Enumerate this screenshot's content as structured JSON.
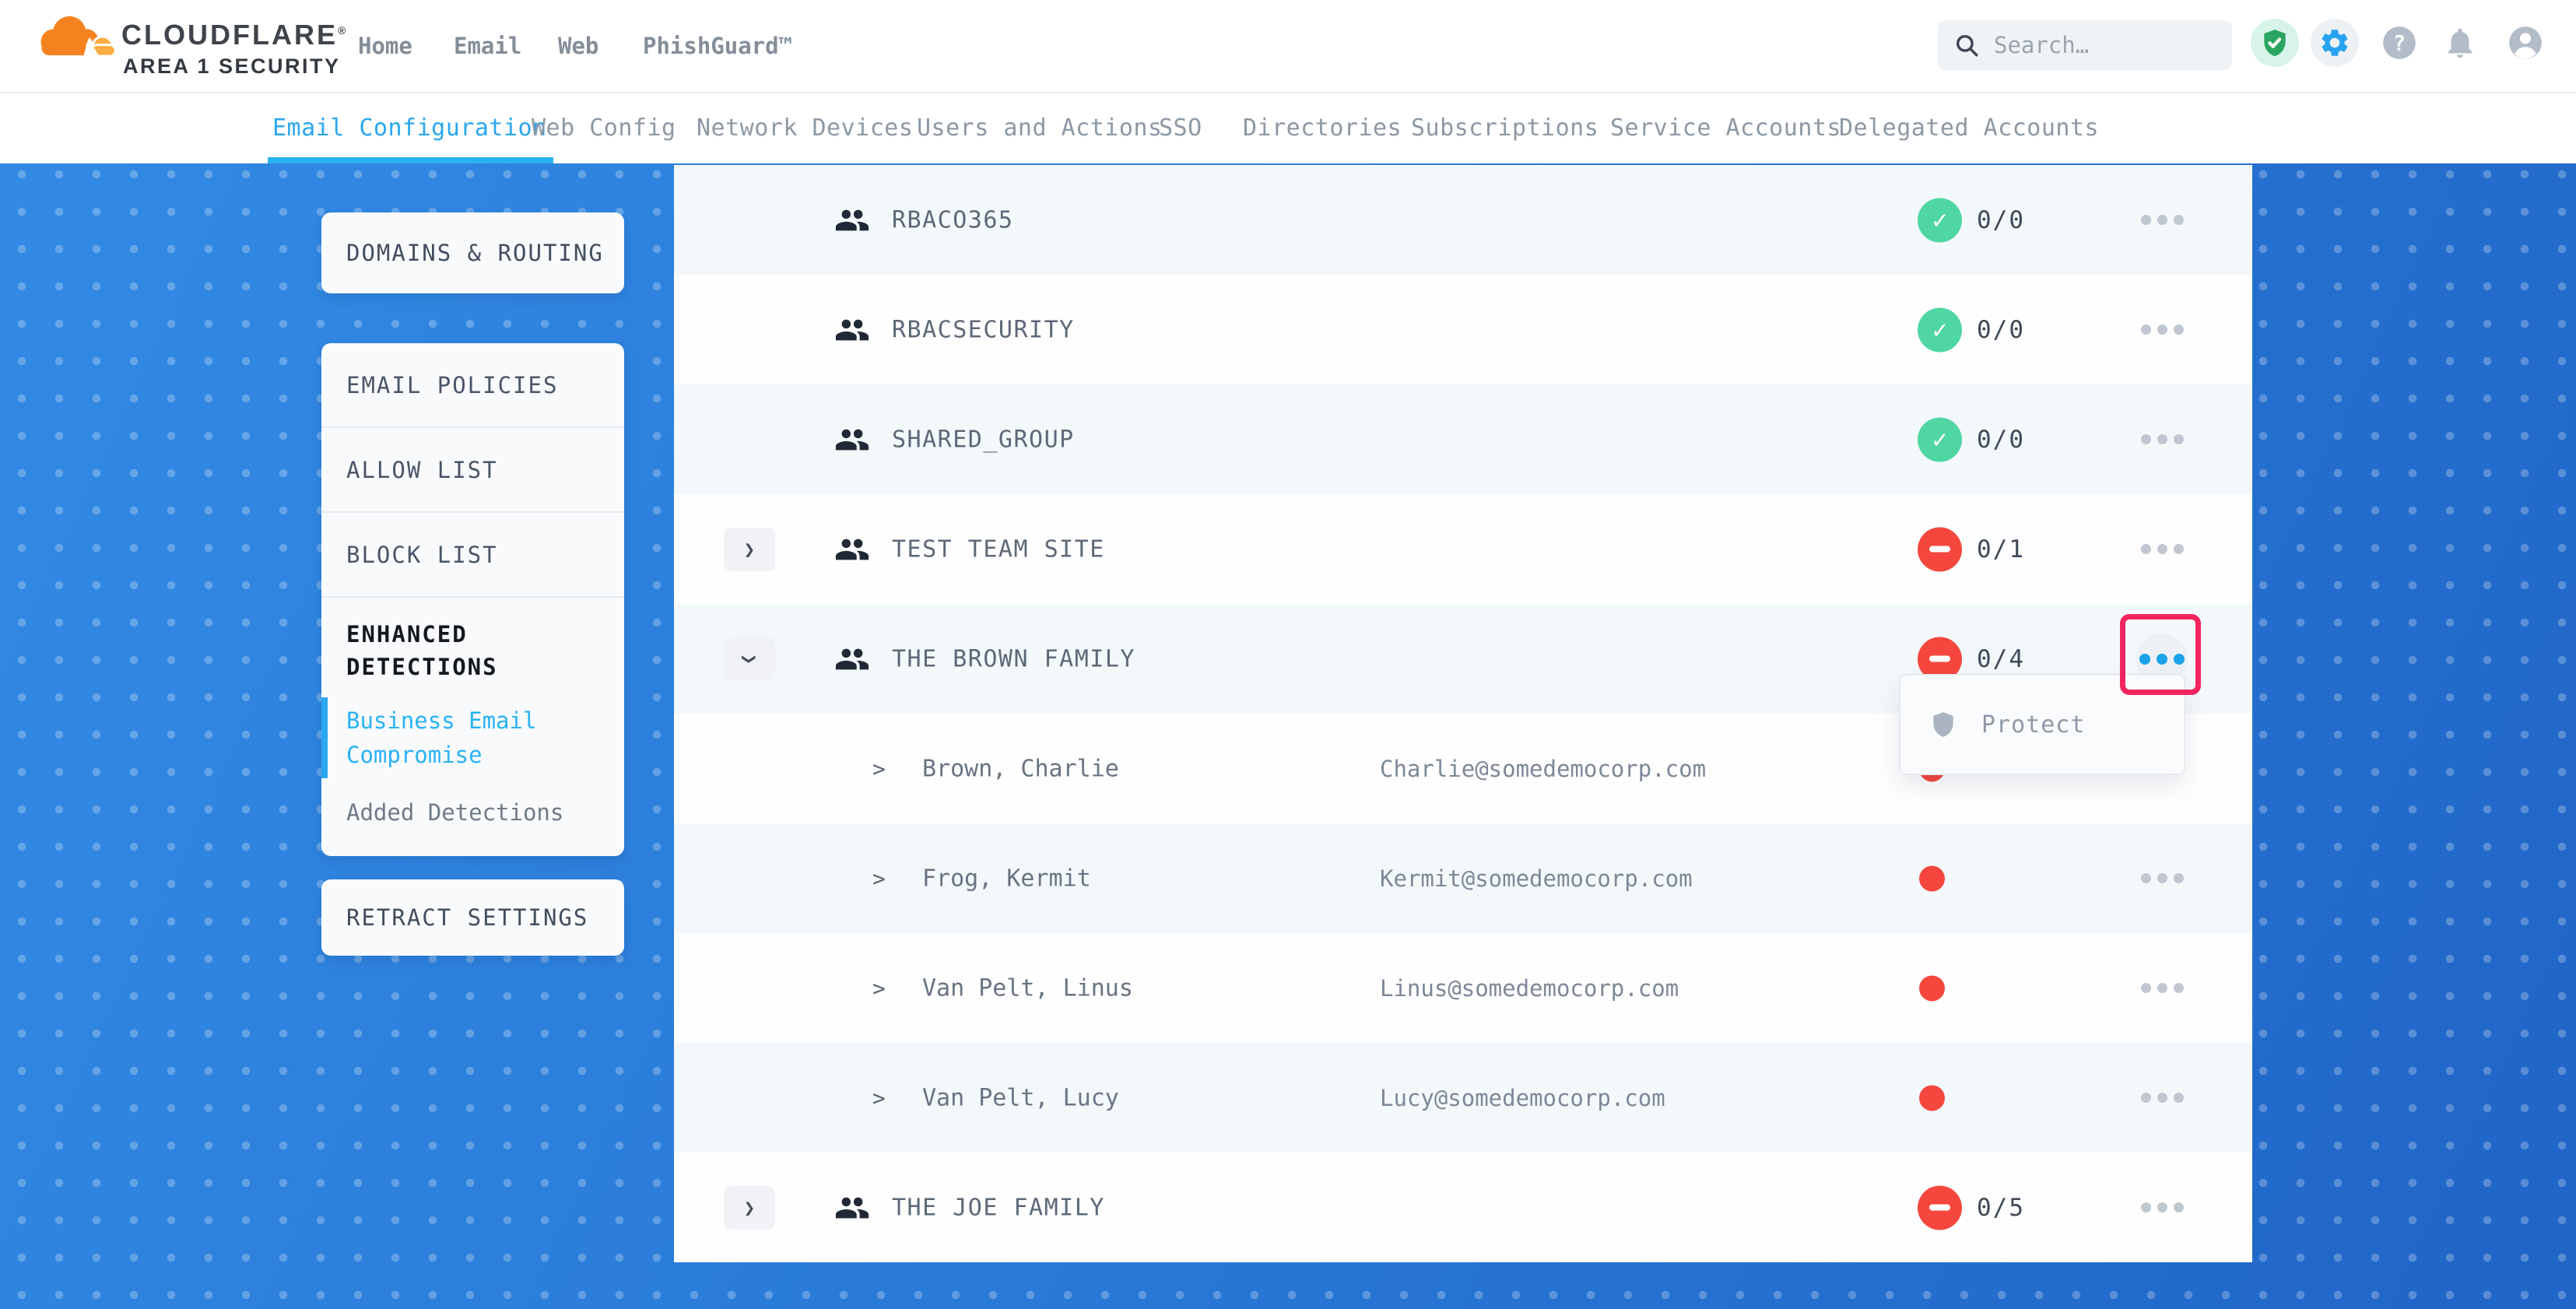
{
  "brand": {
    "wordmark": "CLOUDFLARE",
    "registered_mark": "®",
    "subtitle": "AREA 1 SECURITY"
  },
  "header": {
    "nav": [
      {
        "label": "Home"
      },
      {
        "label": "Email"
      },
      {
        "label": "Web"
      },
      {
        "label": "PhishGuard™"
      }
    ],
    "search": {
      "placeholder": "Search…"
    },
    "actions": [
      {
        "name": "protection-status",
        "icon": "shield-check",
        "style": "green"
      },
      {
        "name": "settings",
        "icon": "gear",
        "style": "grayb"
      },
      {
        "name": "help",
        "icon": "question",
        "style": "plain"
      },
      {
        "name": "notifications",
        "icon": "bell",
        "style": "plain"
      },
      {
        "name": "account",
        "icon": "avatar",
        "style": "plain"
      }
    ]
  },
  "tabs": [
    {
      "label": "Email Configuration",
      "active": true
    },
    {
      "label": "Web Config",
      "active": false
    },
    {
      "label": "Network Devices",
      "active": false
    },
    {
      "label": "Users and Actions",
      "active": false
    },
    {
      "label": "SSO",
      "active": false
    },
    {
      "label": "Directories",
      "active": false
    },
    {
      "label": "Subscriptions",
      "active": false
    },
    {
      "label": "Service Accounts",
      "active": false
    },
    {
      "label": "Delegated Accounts",
      "active": false
    }
  ],
  "sidebar": {
    "domains_card": {
      "label": "DOMAINS & ROUTING"
    },
    "policies_card": {
      "items": [
        {
          "label": "EMAIL POLICIES",
          "style": "item"
        },
        {
          "label": "ALLOW LIST",
          "style": "item"
        },
        {
          "label": "BLOCK LIST",
          "style": "item"
        }
      ],
      "section_heading": "ENHANCED DETECTIONS",
      "section_items": [
        {
          "label": "Business Email Compromise",
          "active": true
        },
        {
          "label": "Added Detections",
          "active": false
        }
      ]
    },
    "retract_card": {
      "label": "RETRACT SETTINGS"
    }
  },
  "table": {
    "rows": [
      {
        "kind": "group",
        "name": "RBACO365",
        "expander": null,
        "status": "ok",
        "count": "0/0"
      },
      {
        "kind": "group",
        "name": "RBACSECURITY",
        "expander": null,
        "status": "ok",
        "count": "0/0"
      },
      {
        "kind": "group",
        "name": "SHARED_GROUP",
        "expander": null,
        "status": "ok",
        "count": "0/0"
      },
      {
        "kind": "group",
        "name": "TEST TEAM SITE",
        "expander": "collapsed",
        "status": "blocked",
        "count": "0/1"
      },
      {
        "kind": "group",
        "name": "THE BROWN FAMILY",
        "expander": "expanded",
        "status": "blocked",
        "count": "0/4",
        "actions_active": true,
        "annotated": true
      },
      {
        "kind": "member",
        "name": "Brown, Charlie",
        "email": "Charlie@somedemocorp.com",
        "status": "dot"
      },
      {
        "kind": "member",
        "name": "Frog, Kermit",
        "email": "Kermit@somedemocorp.com",
        "status": "dot"
      },
      {
        "kind": "member",
        "name": "Van Pelt, Linus",
        "email": "Linus@somedemocorp.com",
        "status": "dot"
      },
      {
        "kind": "member",
        "name": "Van Pelt, Lucy",
        "email": "Lucy@somedemocorp.com",
        "status": "dot"
      },
      {
        "kind": "group",
        "name": "THE JOE FAMILY",
        "expander": "collapsed",
        "status": "blocked",
        "count": "0/5"
      }
    ]
  },
  "context_menu": {
    "items": [
      {
        "icon": "shield",
        "label": "Protect"
      }
    ]
  },
  "annotation": {
    "shape": "rounded-rect",
    "color": "#f5255f"
  },
  "colors": {
    "accent_blue": "#2aa7f0",
    "ok_green": "#4fd6a3",
    "danger_red": "#f5473e",
    "brand_orange": "#f6821f",
    "brand_orange_light": "#fbad41",
    "bg_blue": "#2a7bd8"
  }
}
